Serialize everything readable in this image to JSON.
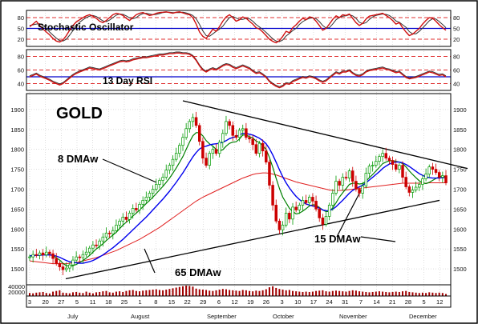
{
  "chart_data": {
    "type": "line",
    "instrument": "GOLD",
    "panels": {
      "stochastic": {
        "title": "Stochastic Oscillator",
        "yticks": [
          20,
          50,
          80
        ],
        "right_ticks": [
          20,
          50,
          80
        ],
        "ylim": [
          0,
          100
        ],
        "reference_lines": [
          20,
          50,
          80
        ]
      },
      "rsi": {
        "title": "13 Day RSI",
        "yticks": [
          40,
          60,
          80
        ],
        "right_ticks": [
          40,
          60,
          80
        ],
        "ylim": [
          30,
          90
        ],
        "reference_lines": [
          50
        ]
      },
      "price": {
        "yticks": [
          1500,
          1550,
          1600,
          1650,
          1700,
          1750,
          1800,
          1850,
          1900
        ],
        "ylim": [
          1460,
          1940
        ],
        "series": [
          {
            "name": "8 DMAw",
            "color": "#008000"
          },
          {
            "name": "15 DMAw",
            "color": "#0000ff"
          },
          {
            "name": "65 DMAw",
            "color": "#ff0000"
          }
        ],
        "annotations": [
          "8 DMAw",
          "15 DMAw",
          "65 DMAw"
        ],
        "label": "GOLD"
      },
      "volume": {
        "yticks": [
          "40000",
          "20000"
        ]
      }
    },
    "day_labels": [
      "3",
      "20",
      "27",
      "5",
      "11",
      "18",
      "25",
      "1",
      "8",
      "15",
      "22",
      "29",
      "6",
      "12",
      "19",
      "26",
      "3",
      "10",
      "17",
      "24",
      "31",
      "7",
      "14",
      "21",
      "28",
      "5",
      "12"
    ],
    "months": [
      "July",
      "August",
      "September",
      "October",
      "November",
      "December"
    ],
    "close": [
      1530,
      1536,
      1534,
      1540,
      1535,
      1542,
      1538,
      1526,
      1514,
      1505,
      1498,
      1502,
      1510,
      1522,
      1530,
      1528,
      1536,
      1542,
      1552,
      1560,
      1558,
      1570,
      1580,
      1590,
      1588,
      1596,
      1610,
      1620,
      1630,
      1624,
      1640,
      1652,
      1648,
      1662,
      1672,
      1680,
      1690,
      1700,
      1712,
      1722,
      1730,
      1748,
      1760,
      1775,
      1790,
      1810,
      1830,
      1852,
      1870,
      1880,
      1860,
      1820,
      1778,
      1760,
      1790,
      1800,
      1790,
      1818,
      1840,
      1870,
      1860,
      1835,
      1830,
      1848,
      1852,
      1830,
      1826,
      1812,
      1790,
      1815,
      1796,
      1768,
      1710,
      1660,
      1620,
      1598,
      1610,
      1640,
      1625,
      1655,
      1648,
      1660,
      1672,
      1666,
      1680,
      1670,
      1650,
      1628,
      1612,
      1632,
      1660,
      1690,
      1720,
      1710,
      1730,
      1728,
      1746,
      1720,
      1700,
      1690,
      1708,
      1740,
      1758,
      1760,
      1770,
      1782,
      1790,
      1778,
      1772,
      1762,
      1750,
      1760,
      1730,
      1706,
      1692,
      1698,
      1705,
      1712,
      1726,
      1738,
      1756,
      1750,
      1742,
      1730,
      1734,
      1716
    ],
    "dma8": [
      1532,
      1533,
      1534,
      1535,
      1536,
      1536,
      1536,
      1533,
      1528,
      1522,
      1514,
      1508,
      1507,
      1508,
      1511,
      1516,
      1521,
      1527,
      1534,
      1542,
      1550,
      1556,
      1563,
      1571,
      1578,
      1585,
      1592,
      1601,
      1610,
      1617,
      1624,
      1633,
      1640,
      1648,
      1656,
      1664,
      1672,
      1680,
      1689,
      1698,
      1707,
      1717,
      1728,
      1740,
      1753,
      1767,
      1782,
      1800,
      1818,
      1834,
      1842,
      1842,
      1834,
      1822,
      1814,
      1808,
      1800,
      1796,
      1799,
      1808,
      1815,
      1818,
      1819,
      1826,
      1836,
      1836,
      1832,
      1829,
      1821,
      1817,
      1809,
      1800,
      1780,
      1755,
      1728,
      1702,
      1680,
      1666,
      1652,
      1644,
      1638,
      1640,
      1645,
      1651,
      1658,
      1661,
      1660,
      1654,
      1648,
      1644,
      1644,
      1653,
      1666,
      1680,
      1691,
      1701,
      1712,
      1715,
      1715,
      1713,
      1714,
      1720,
      1729,
      1737,
      1746,
      1755,
      1764,
      1768,
      1771,
      1772,
      1770,
      1768,
      1764,
      1756,
      1746,
      1737,
      1729,
      1721,
      1716,
      1714,
      1717,
      1722,
      1727,
      1731,
      1733,
      1731
    ],
    "dma15": [
      1533,
      1533,
      1534,
      1534,
      1535,
      1535,
      1535,
      1534,
      1532,
      1529,
      1525,
      1521,
      1518,
      1516,
      1515,
      1514,
      1514,
      1516,
      1518,
      1521,
      1525,
      1530,
      1535,
      1541,
      1547,
      1553,
      1560,
      1567,
      1574,
      1582,
      1590,
      1598,
      1606,
      1614,
      1622,
      1630,
      1639,
      1648,
      1657,
      1666,
      1675,
      1685,
      1695,
      1706,
      1717,
      1729,
      1741,
      1754,
      1768,
      1781,
      1792,
      1801,
      1806,
      1808,
      1811,
      1813,
      1814,
      1815,
      1818,
      1822,
      1827,
      1830,
      1832,
      1836,
      1840,
      1840,
      1838,
      1836,
      1832,
      1828,
      1822,
      1814,
      1802,
      1786,
      1768,
      1749,
      1731,
      1716,
      1703,
      1692,
      1682,
      1674,
      1668,
      1663,
      1660,
      1658,
      1656,
      1652,
      1648,
      1646,
      1646,
      1650,
      1656,
      1664,
      1672,
      1681,
      1690,
      1697,
      1702,
      1706,
      1710,
      1716,
      1723,
      1730,
      1737,
      1744,
      1752,
      1758,
      1763,
      1767,
      1768,
      1768,
      1766,
      1762,
      1757,
      1751,
      1745,
      1739,
      1735,
      1731,
      1729,
      1728,
      1728,
      1728,
      1729,
      1729
    ],
    "dma65": [
      1520,
      1519,
      1518,
      1517,
      1516,
      1515,
      1514,
      1513,
      1513,
      1513,
      1513,
      1513,
      1514,
      1515,
      1516,
      1518,
      1520,
      1522,
      1524,
      1526,
      1528,
      1531,
      1534,
      1537,
      1540,
      1543,
      1546,
      1550,
      1554,
      1558,
      1562,
      1566,
      1570,
      1574,
      1579,
      1584,
      1589,
      1594,
      1599,
      1604,
      1610,
      1616,
      1622,
      1628,
      1634,
      1640,
      1646,
      1652,
      1658,
      1664,
      1670,
      1675,
      1680,
      1684,
      1688,
      1692,
      1696,
      1700,
      1704,
      1708,
      1712,
      1716,
      1720,
      1724,
      1728,
      1731,
      1734,
      1737,
      1739,
      1740,
      1741,
      1741,
      1740,
      1738,
      1736,
      1733,
      1730,
      1727,
      1724,
      1721,
      1718,
      1716,
      1714,
      1712,
      1710,
      1708,
      1706,
      1704,
      1702,
      1700,
      1698,
      1697,
      1697,
      1697,
      1697,
      1698,
      1699,
      1700,
      1701,
      1702,
      1703,
      1704,
      1705,
      1706,
      1707,
      1708,
      1709,
      1710,
      1711,
      1712,
      1713,
      1714,
      1715,
      1715,
      1715,
      1715,
      1715,
      1715,
      1715,
      1715,
      1716,
      1716,
      1716,
      1716,
      1716,
      1716
    ],
    "stochastic_k": [
      55,
      62,
      70,
      58,
      48,
      40,
      32,
      22,
      15,
      12,
      18,
      30,
      45,
      58,
      68,
      74,
      80,
      85,
      88,
      84,
      78,
      70,
      66,
      72,
      80,
      88,
      92,
      90,
      86,
      78,
      72,
      80,
      88,
      92,
      94,
      90,
      86,
      88,
      92,
      94,
      95,
      96,
      94,
      92,
      95,
      96,
      93,
      90,
      88,
      80,
      62,
      40,
      28,
      22,
      35,
      48,
      42,
      55,
      70,
      82,
      88,
      80,
      70,
      74,
      82,
      78,
      70,
      62,
      52,
      48,
      40,
      30,
      20,
      14,
      10,
      16,
      28,
      42,
      38,
      52,
      60,
      70,
      78,
      74,
      82,
      80,
      70,
      58,
      45,
      50,
      62,
      75,
      85,
      80,
      88,
      86,
      90,
      78,
      66,
      58,
      64,
      76,
      84,
      86,
      88,
      90,
      92,
      86,
      80,
      72,
      62,
      66,
      52,
      40,
      30,
      34,
      42,
      50,
      62,
      72,
      80,
      78,
      70,
      60,
      52,
      45
    ],
    "stochastic_d": [
      58,
      60,
      62,
      63,
      58,
      50,
      40,
      31,
      23,
      16,
      15,
      20,
      31,
      44,
      57,
      67,
      74,
      80,
      84,
      86,
      83,
      77,
      71,
      69,
      73,
      80,
      87,
      90,
      89,
      85,
      79,
      77,
      80,
      87,
      91,
      92,
      90,
      88,
      89,
      91,
      94,
      95,
      95,
      94,
      94,
      94,
      95,
      93,
      90,
      86,
      77,
      61,
      43,
      30,
      28,
      35,
      42,
      48,
      56,
      69,
      80,
      83,
      79,
      75,
      75,
      78,
      77,
      70,
      61,
      54,
      47,
      39,
      30,
      21,
      15,
      13,
      18,
      29,
      36,
      44,
      50,
      61,
      69,
      74,
      78,
      79,
      77,
      69,
      58,
      51,
      52,
      62,
      74,
      80,
      84,
      85,
      88,
      85,
      78,
      67,
      63,
      66,
      75,
      82,
      86,
      88,
      90,
      89,
      86,
      79,
      71,
      67,
      60,
      53,
      41,
      35,
      35,
      42,
      51,
      61,
      71,
      77,
      76,
      69,
      61,
      52
    ],
    "rsi": [
      50,
      52,
      54,
      51,
      49,
      47,
      45,
      42,
      40,
      38,
      40,
      44,
      48,
      52,
      55,
      57,
      59,
      61,
      63,
      62,
      61,
      60,
      62,
      64,
      66,
      68,
      70,
      72,
      73,
      72,
      73,
      75,
      76,
      77,
      78,
      78,
      79,
      80,
      81,
      82,
      82,
      83,
      84,
      84,
      85,
      85,
      84,
      84,
      83,
      80,
      74,
      66,
      60,
      57,
      60,
      62,
      60,
      63,
      66,
      68,
      67,
      64,
      62,
      64,
      66,
      64,
      62,
      58,
      55,
      56,
      53,
      49,
      43,
      39,
      36,
      34,
      36,
      40,
      39,
      43,
      45,
      47,
      49,
      48,
      50,
      49,
      47,
      44,
      42,
      44,
      48,
      52,
      56,
      54,
      57,
      57,
      59,
      55,
      52,
      51,
      53,
      57,
      59,
      60,
      61,
      62,
      63,
      61,
      60,
      58,
      56,
      57,
      53,
      49,
      47,
      48,
      49,
      51,
      53,
      55,
      57,
      56,
      54,
      52,
      53,
      50
    ],
    "volume": [
      18,
      16,
      20,
      22,
      24,
      18,
      15,
      26,
      30,
      34,
      20,
      18,
      16,
      22,
      24,
      20,
      18,
      26,
      20,
      16,
      22,
      24,
      28,
      30,
      22,
      20,
      26,
      28,
      24,
      30,
      34,
      36,
      30,
      28,
      32,
      34,
      36,
      38,
      40,
      36,
      34,
      38,
      42,
      46,
      50,
      54,
      58,
      62,
      60,
      56,
      44,
      40,
      38,
      36,
      32,
      30,
      34,
      38,
      42,
      40,
      36,
      34,
      32,
      30,
      36,
      34,
      30,
      28,
      32,
      30,
      34,
      40,
      52,
      58,
      48,
      42,
      38,
      34,
      36,
      30,
      28,
      26,
      24,
      26,
      24,
      26,
      30,
      32,
      34,
      28,
      26,
      30,
      32,
      30,
      28,
      26,
      30,
      34,
      32,
      28,
      26,
      24,
      22,
      24,
      26,
      28,
      26,
      24,
      22,
      24,
      26,
      24,
      28,
      30,
      24,
      22,
      20,
      18,
      20,
      18,
      22,
      20,
      18,
      20,
      18,
      12
    ]
  }
}
